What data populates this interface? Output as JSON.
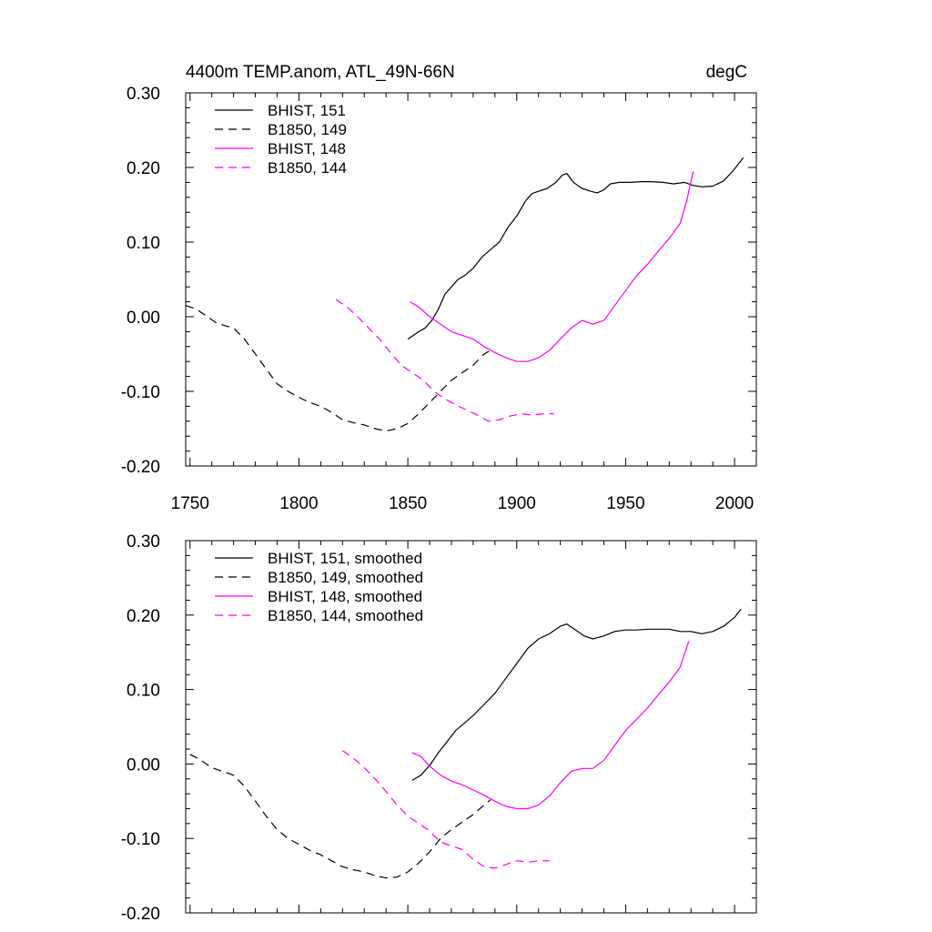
{
  "figure": {
    "title_left": "4400m TEMP.anom, ATL_49N-66N",
    "title_right": "degC"
  },
  "chart_data": [
    {
      "type": "line",
      "title": "4400m TEMP.anom, ATL_49N-66N",
      "units": "degC",
      "xlim": [
        1748,
        2010
      ],
      "ylim": [
        -0.2,
        0.3
      ],
      "xticks": [
        "1750",
        "1800",
        "1850",
        "1900",
        "1950",
        "2000"
      ],
      "yticks": [
        "0.30",
        "0.20",
        "0.10",
        "0.00",
        "-0.10",
        "-0.20"
      ],
      "legend_position": "top-left",
      "series": [
        {
          "name": "BHIST, 151",
          "color": "#000000",
          "dash": "solid",
          "x": [
            1850,
            1855,
            1858,
            1861,
            1864,
            1867,
            1870,
            1873,
            1876,
            1880,
            1884,
            1888,
            1892,
            1896,
            1900,
            1904,
            1907,
            1910,
            1914,
            1918,
            1921,
            1923,
            1926,
            1930,
            1934,
            1937,
            1940,
            1943,
            1947,
            1952,
            1957,
            1962,
            1967,
            1972,
            1977,
            1981,
            1985,
            1990,
            1995,
            2000,
            2004
          ],
          "y": [
            -0.03,
            -0.02,
            -0.015,
            -0.005,
            0.01,
            0.03,
            0.04,
            0.05,
            0.055,
            0.065,
            0.08,
            0.09,
            0.1,
            0.12,
            0.135,
            0.155,
            0.165,
            0.168,
            0.172,
            0.18,
            0.19,
            0.192,
            0.18,
            0.172,
            0.168,
            0.166,
            0.17,
            0.178,
            0.18,
            0.18,
            0.181,
            0.181,
            0.18,
            0.178,
            0.18,
            0.176,
            0.174,
            0.175,
            0.182,
            0.198,
            0.213
          ]
        },
        {
          "name": "B1850, 149",
          "color": "#000000",
          "dash": "dashed",
          "x": [
            1748,
            1753,
            1758,
            1762,
            1766,
            1770,
            1775,
            1780,
            1785,
            1790,
            1795,
            1800,
            1805,
            1810,
            1815,
            1820,
            1825,
            1830,
            1835,
            1840,
            1845,
            1850,
            1855,
            1860,
            1865,
            1870,
            1875,
            1880,
            1885,
            1888
          ],
          "y": [
            0.015,
            0.01,
            0.0,
            -0.008,
            -0.012,
            -0.015,
            -0.03,
            -0.05,
            -0.07,
            -0.09,
            -0.1,
            -0.108,
            -0.115,
            -0.12,
            -0.128,
            -0.138,
            -0.142,
            -0.145,
            -0.15,
            -0.153,
            -0.15,
            -0.143,
            -0.13,
            -0.115,
            -0.1,
            -0.085,
            -0.075,
            -0.065,
            -0.05,
            -0.045
          ]
        },
        {
          "name": "BHIST, 148",
          "color": "#ff00ff",
          "dash": "solid",
          "x": [
            1851,
            1855,
            1860,
            1865,
            1870,
            1875,
            1880,
            1885,
            1890,
            1895,
            1900,
            1905,
            1910,
            1915,
            1920,
            1925,
            1930,
            1935,
            1940,
            1945,
            1950,
            1955,
            1960,
            1965,
            1970,
            1975,
            1978,
            1981
          ],
          "y": [
            0.02,
            0.013,
            0.0,
            -0.01,
            -0.02,
            -0.025,
            -0.03,
            -0.04,
            -0.048,
            -0.055,
            -0.06,
            -0.06,
            -0.055,
            -0.045,
            -0.03,
            -0.015,
            -0.005,
            -0.01,
            -0.005,
            0.015,
            0.035,
            0.055,
            0.07,
            0.088,
            0.105,
            0.125,
            0.155,
            0.195
          ]
        },
        {
          "name": "B1850, 144",
          "color": "#ff00ff",
          "dash": "dashed",
          "x": [
            1817,
            1822,
            1827,
            1832,
            1837,
            1842,
            1847,
            1852,
            1857,
            1862,
            1867,
            1872,
            1877,
            1882,
            1887,
            1892,
            1897,
            1902,
            1907,
            1912,
            1917
          ],
          "y": [
            0.023,
            0.013,
            0.0,
            -0.015,
            -0.03,
            -0.048,
            -0.065,
            -0.075,
            -0.085,
            -0.1,
            -0.11,
            -0.118,
            -0.125,
            -0.132,
            -0.14,
            -0.138,
            -0.133,
            -0.13,
            -0.132,
            -0.13,
            -0.13
          ]
        }
      ]
    },
    {
      "type": "line",
      "xlim": [
        1748,
        2010
      ],
      "ylim": [
        -0.2,
        0.3
      ],
      "yticks": [
        "0.30",
        "0.20",
        "0.10",
        "0.00",
        "-0.10",
        "-0.20"
      ],
      "legend_position": "top-left",
      "series": [
        {
          "name": "BHIST, 151, smoothed",
          "color": "#000000",
          "dash": "solid",
          "x": [
            1852,
            1856,
            1860,
            1864,
            1868,
            1872,
            1876,
            1880,
            1885,
            1890,
            1895,
            1900,
            1905,
            1910,
            1915,
            1920,
            1923,
            1927,
            1931,
            1935,
            1940,
            1945,
            1950,
            1955,
            1960,
            1965,
            1970,
            1975,
            1980,
            1985,
            1990,
            1995,
            2000,
            2003
          ],
          "y": [
            -0.022,
            -0.015,
            -0.002,
            0.015,
            0.03,
            0.045,
            0.055,
            0.065,
            0.08,
            0.095,
            0.115,
            0.135,
            0.155,
            0.168,
            0.175,
            0.185,
            0.188,
            0.18,
            0.172,
            0.168,
            0.172,
            0.178,
            0.18,
            0.18,
            0.181,
            0.181,
            0.181,
            0.178,
            0.178,
            0.175,
            0.178,
            0.185,
            0.197,
            0.208
          ]
        },
        {
          "name": "B1850, 149, smoothed",
          "color": "#000000",
          "dash": "dashed",
          "x": [
            1750,
            1755,
            1760,
            1765,
            1770,
            1775,
            1780,
            1785,
            1790,
            1795,
            1800,
            1805,
            1810,
            1815,
            1820,
            1825,
            1830,
            1835,
            1840,
            1845,
            1850,
            1855,
            1860,
            1865,
            1870,
            1875,
            1880,
            1885,
            1888
          ],
          "y": [
            0.013,
            0.005,
            -0.005,
            -0.01,
            -0.015,
            -0.03,
            -0.05,
            -0.07,
            -0.088,
            -0.1,
            -0.108,
            -0.116,
            -0.122,
            -0.13,
            -0.138,
            -0.142,
            -0.145,
            -0.15,
            -0.153,
            -0.152,
            -0.145,
            -0.133,
            -0.118,
            -0.1,
            -0.088,
            -0.078,
            -0.068,
            -0.055,
            -0.048
          ]
        },
        {
          "name": "BHIST, 148, smoothed",
          "color": "#ff00ff",
          "dash": "solid",
          "x": [
            1852,
            1856,
            1860,
            1865,
            1870,
            1875,
            1880,
            1885,
            1890,
            1895,
            1900,
            1905,
            1910,
            1915,
            1920,
            1925,
            1930,
            1935,
            1940,
            1945,
            1950,
            1955,
            1960,
            1965,
            1970,
            1975,
            1979
          ],
          "y": [
            0.015,
            0.01,
            -0.003,
            -0.015,
            -0.023,
            -0.028,
            -0.035,
            -0.042,
            -0.05,
            -0.057,
            -0.06,
            -0.06,
            -0.055,
            -0.043,
            -0.025,
            -0.01,
            -0.006,
            -0.006,
            0.005,
            0.025,
            0.045,
            0.06,
            0.075,
            0.093,
            0.11,
            0.13,
            0.165
          ]
        },
        {
          "name": "B1850, 144, smoothed",
          "color": "#ff00ff",
          "dash": "dashed",
          "x": [
            1820,
            1825,
            1830,
            1835,
            1840,
            1845,
            1850,
            1855,
            1860,
            1865,
            1870,
            1875,
            1880,
            1885,
            1890,
            1895,
            1900,
            1905,
            1910,
            1915
          ],
          "y": [
            0.018,
            0.008,
            -0.005,
            -0.02,
            -0.037,
            -0.055,
            -0.07,
            -0.08,
            -0.09,
            -0.105,
            -0.11,
            -0.115,
            -0.128,
            -0.138,
            -0.14,
            -0.135,
            -0.13,
            -0.132,
            -0.13,
            -0.13
          ]
        }
      ]
    }
  ]
}
